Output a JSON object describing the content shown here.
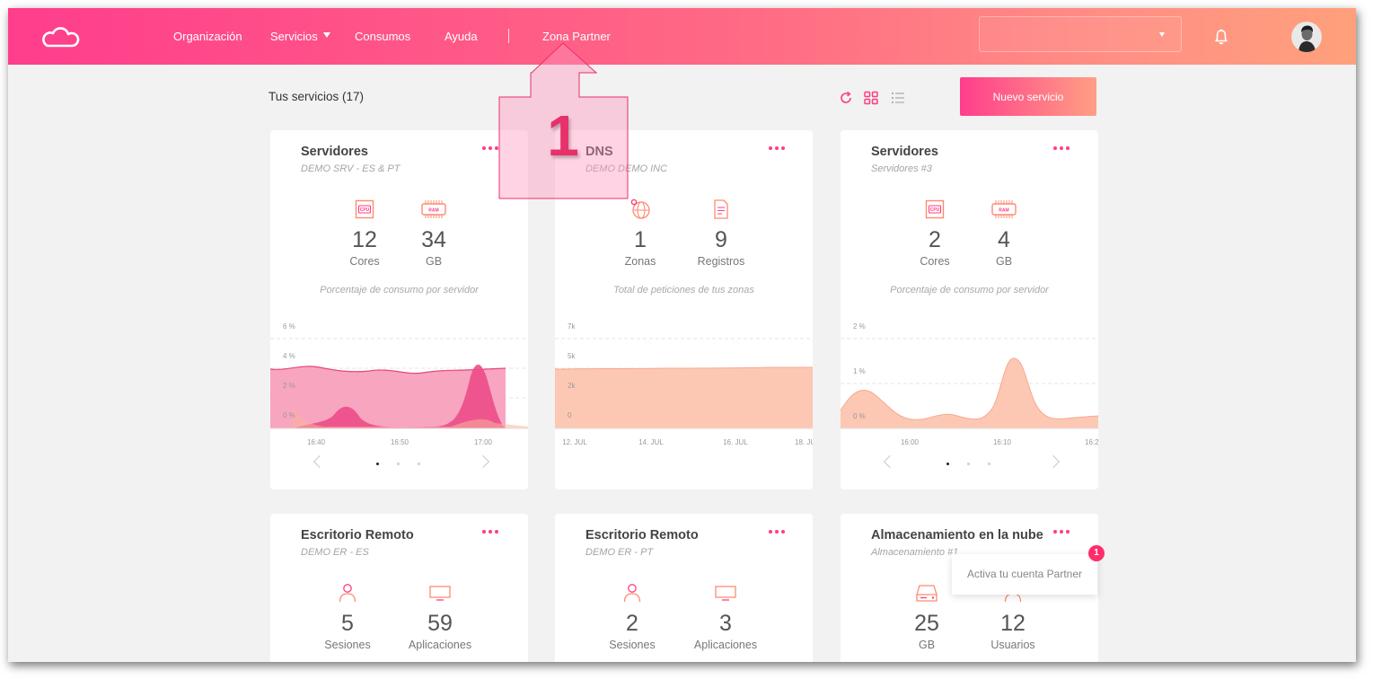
{
  "nav": {
    "items": [
      "Organización",
      "Servicios",
      "Consumos",
      "Ayuda"
    ],
    "partner_label": "Zona Partner",
    "org_select_value": ""
  },
  "main": {
    "title": "Tus servicios (17)",
    "new_service_label": "Nuevo servicio"
  },
  "cards": [
    {
      "title": "Servidores",
      "subtitle": "DEMO SRV - ES & PT",
      "metrics": [
        {
          "icon": "cpu-icon",
          "value": "12",
          "label": "Cores"
        },
        {
          "icon": "ram-icon",
          "value": "34",
          "label": "GB"
        }
      ],
      "hint": "Porcentaje de consumo por servidor",
      "chart_data": {
        "type": "area",
        "x": [
          "16:40",
          "16:50",
          "17:00"
        ],
        "yticks": [
          "6 %",
          "4 %",
          "2 %",
          "0 %"
        ],
        "ylim": [
          0,
          6
        ]
      }
    },
    {
      "title": "DNS",
      "subtitle": "DEMO DEMO INC",
      "metrics": [
        {
          "icon": "globe-icon",
          "value": "1",
          "label": "Zonas"
        },
        {
          "icon": "document-icon",
          "value": "9",
          "label": "Registros"
        }
      ],
      "hint": "Total de peticiones de tus zonas",
      "chart_data": {
        "type": "area",
        "x": [
          "12. JUL",
          "14. JUL",
          "16. JUL",
          "18. JU"
        ],
        "yticks": [
          "7k",
          "5k",
          "2k",
          "0"
        ],
        "ylim": [
          0,
          7000
        ]
      }
    },
    {
      "title": "Servidores",
      "subtitle": "Servidores #3",
      "metrics": [
        {
          "icon": "cpu-icon",
          "value": "2",
          "label": "Cores"
        },
        {
          "icon": "ram-icon",
          "value": "4",
          "label": "GB"
        }
      ],
      "hint": "Porcentaje de consumo por servidor",
      "chart_data": {
        "type": "area",
        "x": [
          "16:00",
          "16:10",
          "16:2"
        ],
        "yticks": [
          "2 %",
          "1 %",
          "0 %"
        ],
        "ylim": [
          0,
          2
        ]
      }
    },
    {
      "title": "Escritorio Remoto",
      "subtitle": "DEMO ER - ES",
      "metrics": [
        {
          "icon": "user-icon",
          "value": "5",
          "label": "Sesiones"
        },
        {
          "icon": "monitor-icon",
          "value": "59",
          "label": "Aplicaciones"
        }
      ]
    },
    {
      "title": "Escritorio Remoto",
      "subtitle": "DEMO ER - PT",
      "metrics": [
        {
          "icon": "user-icon",
          "value": "2",
          "label": "Sesiones"
        },
        {
          "icon": "monitor-icon",
          "value": "3",
          "label": "Aplicaciones"
        }
      ]
    },
    {
      "title": "Almacenamiento en la nube",
      "subtitle": "Almacenamiento #1",
      "metrics": [
        {
          "icon": "hard-drive-icon",
          "value": "25",
          "label": "GB"
        },
        {
          "icon": "user-icon",
          "value": "12",
          "label": "Usuarios"
        }
      ]
    }
  ],
  "tooltip": {
    "text": "Activa tu cuenta Partner",
    "badge": "1"
  },
  "callout": {
    "number": "1"
  },
  "colors": {
    "accent": "#ff3d8c",
    "accent_end": "#ffa07c",
    "peach_fill": "#fcc8b4",
    "pink_fill": "#f797b6",
    "badge": "#ff2d6c"
  }
}
